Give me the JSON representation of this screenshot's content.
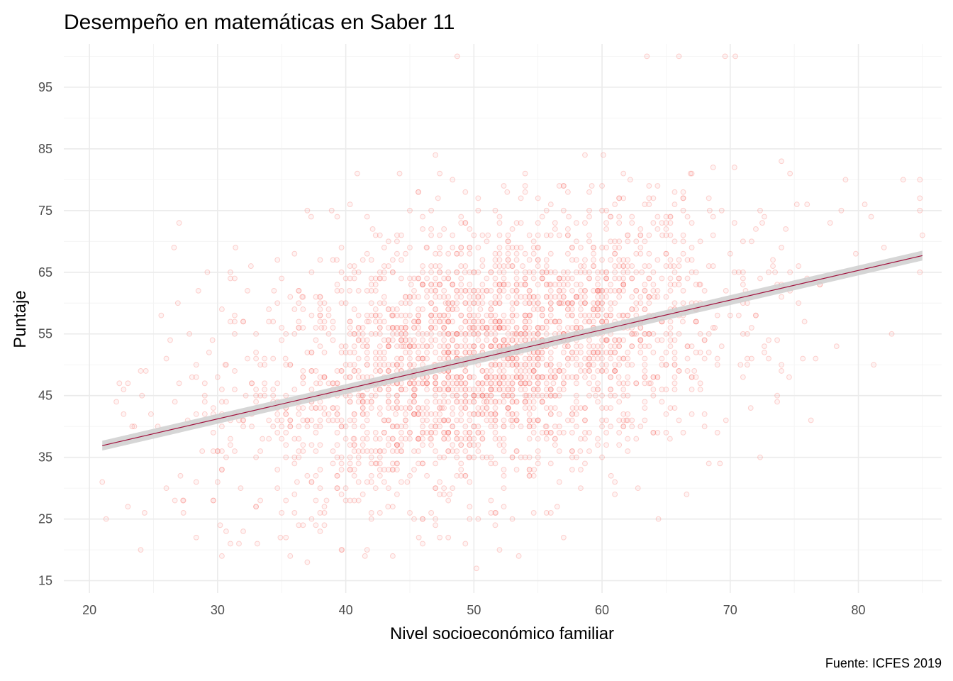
{
  "chart_data": {
    "type": "scatter",
    "title": "Desempeño en matemáticas en Saber 11",
    "xlabel": "Nivel socioeconómico familiar",
    "ylabel": "Puntaje",
    "caption": "Fuente: ICFES 2019",
    "xlim": [
      18,
      86.5
    ],
    "ylim": [
      13,
      102
    ],
    "x_ticks": [
      20,
      30,
      40,
      50,
      60,
      70,
      80
    ],
    "y_ticks": [
      15,
      25,
      35,
      45,
      55,
      65,
      75,
      85,
      95
    ],
    "grid": true,
    "point_color": "#F8766D",
    "series": [
      {
        "points": [
          [
            21.0,
            31
          ],
          [
            21.3,
            25
          ],
          [
            22.1,
            44
          ],
          [
            23.5,
            40
          ],
          [
            24.1,
            45
          ],
          [
            24.3,
            26
          ],
          [
            24.4,
            49
          ],
          [
            24.8,
            42
          ],
          [
            25.6,
            58
          ],
          [
            26.3,
            54
          ],
          [
            26.6,
            69
          ],
          [
            26.9,
            60
          ],
          [
            27.0,
            73
          ],
          [
            27.1,
            32
          ],
          [
            27.3,
            28
          ],
          [
            27.8,
            55
          ],
          [
            28.5,
            62
          ],
          [
            28.8,
            36
          ],
          [
            29.2,
            65
          ],
          [
            29.6,
            54
          ],
          [
            30.0,
            41
          ],
          [
            30.2,
            24
          ],
          [
            30.6,
            50
          ],
          [
            31.0,
            57
          ],
          [
            31.4,
            69
          ],
          [
            31.8,
            30
          ],
          [
            32.2,
            45
          ],
          [
            32.6,
            66
          ],
          [
            33.1,
            21
          ],
          [
            33.5,
            38
          ],
          [
            34.0,
            59
          ],
          [
            34.4,
            62
          ],
          [
            34.9,
            22
          ],
          [
            35.3,
            51
          ],
          [
            35.8,
            44
          ],
          [
            36.2,
            31
          ],
          [
            36.6,
            61
          ],
          [
            37.0,
            18
          ],
          [
            37.3,
            74
          ],
          [
            37.7,
            47
          ],
          [
            38.1,
            56
          ],
          [
            38.5,
            28
          ],
          [
            38.9,
            75
          ],
          [
            39.3,
            67
          ],
          [
            39.7,
            20
          ],
          [
            40.0,
            53
          ],
          [
            40.3,
            62
          ],
          [
            40.6,
            38
          ],
          [
            40.9,
            81
          ],
          [
            41.2,
            45
          ],
          [
            41.5,
            19
          ],
          [
            41.8,
            57
          ],
          [
            42.1,
            72
          ],
          [
            42.4,
            34
          ],
          [
            42.7,
            49
          ],
          [
            43.0,
            66
          ],
          [
            43.3,
            27
          ],
          [
            43.6,
            58
          ],
          [
            43.9,
            42
          ],
          [
            44.2,
            81
          ],
          [
            44.5,
            53
          ],
          [
            44.8,
            31
          ],
          [
            45.1,
            63
          ],
          [
            45.4,
            46
          ],
          [
            45.7,
            22
          ],
          [
            46.0,
            55
          ],
          [
            46.3,
            69
          ],
          [
            46.6,
            38
          ],
          [
            46.9,
            50
          ],
          [
            47.2,
            77
          ],
          [
            47.5,
            43
          ],
          [
            47.8,
            60
          ],
          [
            48.1,
            29
          ],
          [
            48.4,
            52
          ],
          [
            48.7,
            100
          ],
          [
            49.0,
            47
          ],
          [
            49.3,
            65
          ],
          [
            49.6,
            35
          ],
          [
            49.9,
            56
          ],
          [
            50.2,
            17
          ],
          [
            50.5,
            59
          ],
          [
            50.8,
            44
          ],
          [
            51.1,
            71
          ],
          [
            51.4,
            50
          ],
          [
            51.7,
            26
          ],
          [
            52.0,
            62
          ],
          [
            52.3,
            48
          ],
          [
            52.6,
            78
          ],
          [
            52.9,
            41
          ],
          [
            53.2,
            55
          ],
          [
            53.5,
            19
          ],
          [
            53.8,
            66
          ],
          [
            54.1,
            45
          ],
          [
            54.4,
            58
          ],
          [
            54.7,
            33
          ],
          [
            55.0,
            77
          ],
          [
            55.3,
            52
          ],
          [
            55.6,
            40
          ],
          [
            55.9,
            63
          ],
          [
            56.2,
            47
          ],
          [
            56.5,
            27
          ],
          [
            56.8,
            60
          ],
          [
            57.1,
            53
          ],
          [
            57.4,
            74
          ],
          [
            57.7,
            43
          ],
          [
            58.0,
            57
          ],
          [
            58.3,
            36
          ],
          [
            58.6,
            66
          ],
          [
            58.9,
            50
          ],
          [
            59.2,
            79
          ],
          [
            59.5,
            45
          ],
          [
            59.8,
            62
          ],
          [
            60.1,
            84
          ],
          [
            60.4,
            54
          ],
          [
            60.7,
            32
          ],
          [
            61.0,
            69
          ],
          [
            61.3,
            48
          ],
          [
            61.6,
            58
          ],
          [
            61.9,
            41
          ],
          [
            62.2,
            80
          ],
          [
            62.5,
            55
          ],
          [
            62.8,
            30
          ],
          [
            63.1,
            65
          ],
          [
            63.5,
            100
          ],
          [
            63.8,
            47
          ],
          [
            64.1,
            61
          ],
          [
            64.4,
            25
          ],
          [
            64.7,
            71
          ],
          [
            65.0,
            52
          ],
          [
            65.3,
            38
          ],
          [
            65.6,
            66
          ],
          [
            66.0,
            100
          ],
          [
            66.3,
            57
          ],
          [
            66.6,
            29
          ],
          [
            66.9,
            81
          ],
          [
            67.2,
            49
          ],
          [
            67.6,
            63
          ],
          [
            68.0,
            40
          ],
          [
            68.4,
            75
          ],
          [
            68.8,
            56
          ],
          [
            69.2,
            34
          ],
          [
            69.6,
            100
          ],
          [
            70.0,
            68
          ],
          [
            70.4,
            100
          ],
          [
            70.8,
            50
          ],
          [
            71.2,
            62
          ],
          [
            71.6,
            43
          ],
          [
            72.0,
            58
          ],
          [
            72.5,
            73
          ],
          [
            73.0,
            54
          ],
          [
            73.5,
            65
          ],
          [
            74.0,
            83
          ],
          [
            74.6,
            48
          ],
          [
            75.2,
            76
          ],
          [
            75.8,
            57
          ],
          [
            76.3,
            41
          ],
          [
            77.0,
            63
          ],
          [
            77.8,
            73
          ],
          [
            78.3,
            53
          ],
          [
            79.0,
            80
          ],
          [
            79.8,
            68
          ],
          [
            80.5,
            76
          ],
          [
            81.2,
            50
          ],
          [
            82.0,
            69
          ],
          [
            82.6,
            55
          ],
          [
            83.5,
            80
          ],
          [
            84.8,
            80
          ],
          [
            84.8,
            77
          ],
          [
            84.8,
            75
          ],
          [
            84.8,
            65
          ]
        ]
      }
    ],
    "trend_line": {
      "x": [
        21,
        85
      ],
      "y": [
        36.9,
        67.7
      ],
      "color": "#a0103c",
      "band": "#cfcfcf"
    }
  }
}
